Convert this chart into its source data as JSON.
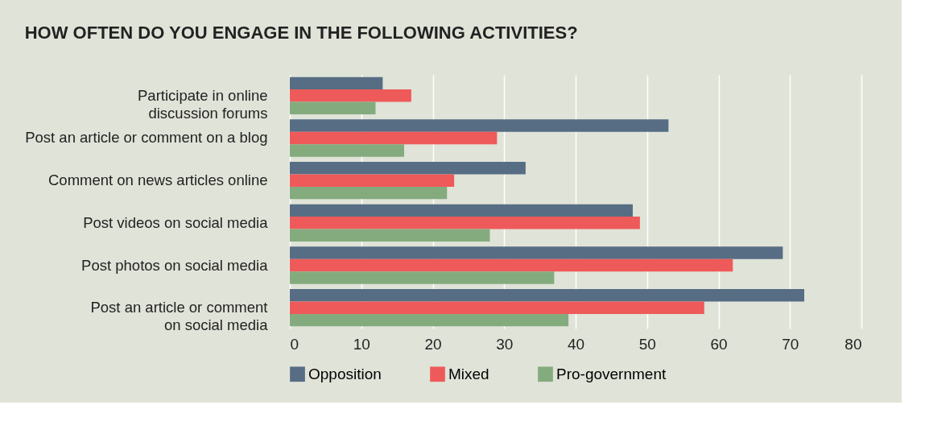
{
  "chart_data": {
    "type": "bar",
    "orientation": "horizontal",
    "title": "HOW OFTEN DO YOU ENGAGE IN THE FOLLOWING ACTIVITIES?",
    "categories": [
      "Participate in online\ndiscussion forums",
      "Post an article or comment on a blog",
      "Comment on news articles online",
      "Post videos on social media",
      "Post photos on social media",
      "Post an article or comment\non social media"
    ],
    "series": [
      {
        "name": "Opposition",
        "color": "#566d84",
        "values": [
          13,
          53,
          33,
          48,
          69,
          72
        ]
      },
      {
        "name": "Mixed",
        "color": "#ee5a5a",
        "values": [
          17,
          29,
          23,
          49,
          62,
          58
        ]
      },
      {
        "name": "Pro-government",
        "color": "#84ab7e",
        "values": [
          12,
          16,
          22,
          28,
          37,
          39
        ]
      }
    ],
    "xlim": [
      0,
      80
    ],
    "xticks": [
      0,
      10,
      20,
      30,
      40,
      50,
      60,
      70,
      80
    ],
    "grid": "x",
    "legend": "bottom"
  }
}
